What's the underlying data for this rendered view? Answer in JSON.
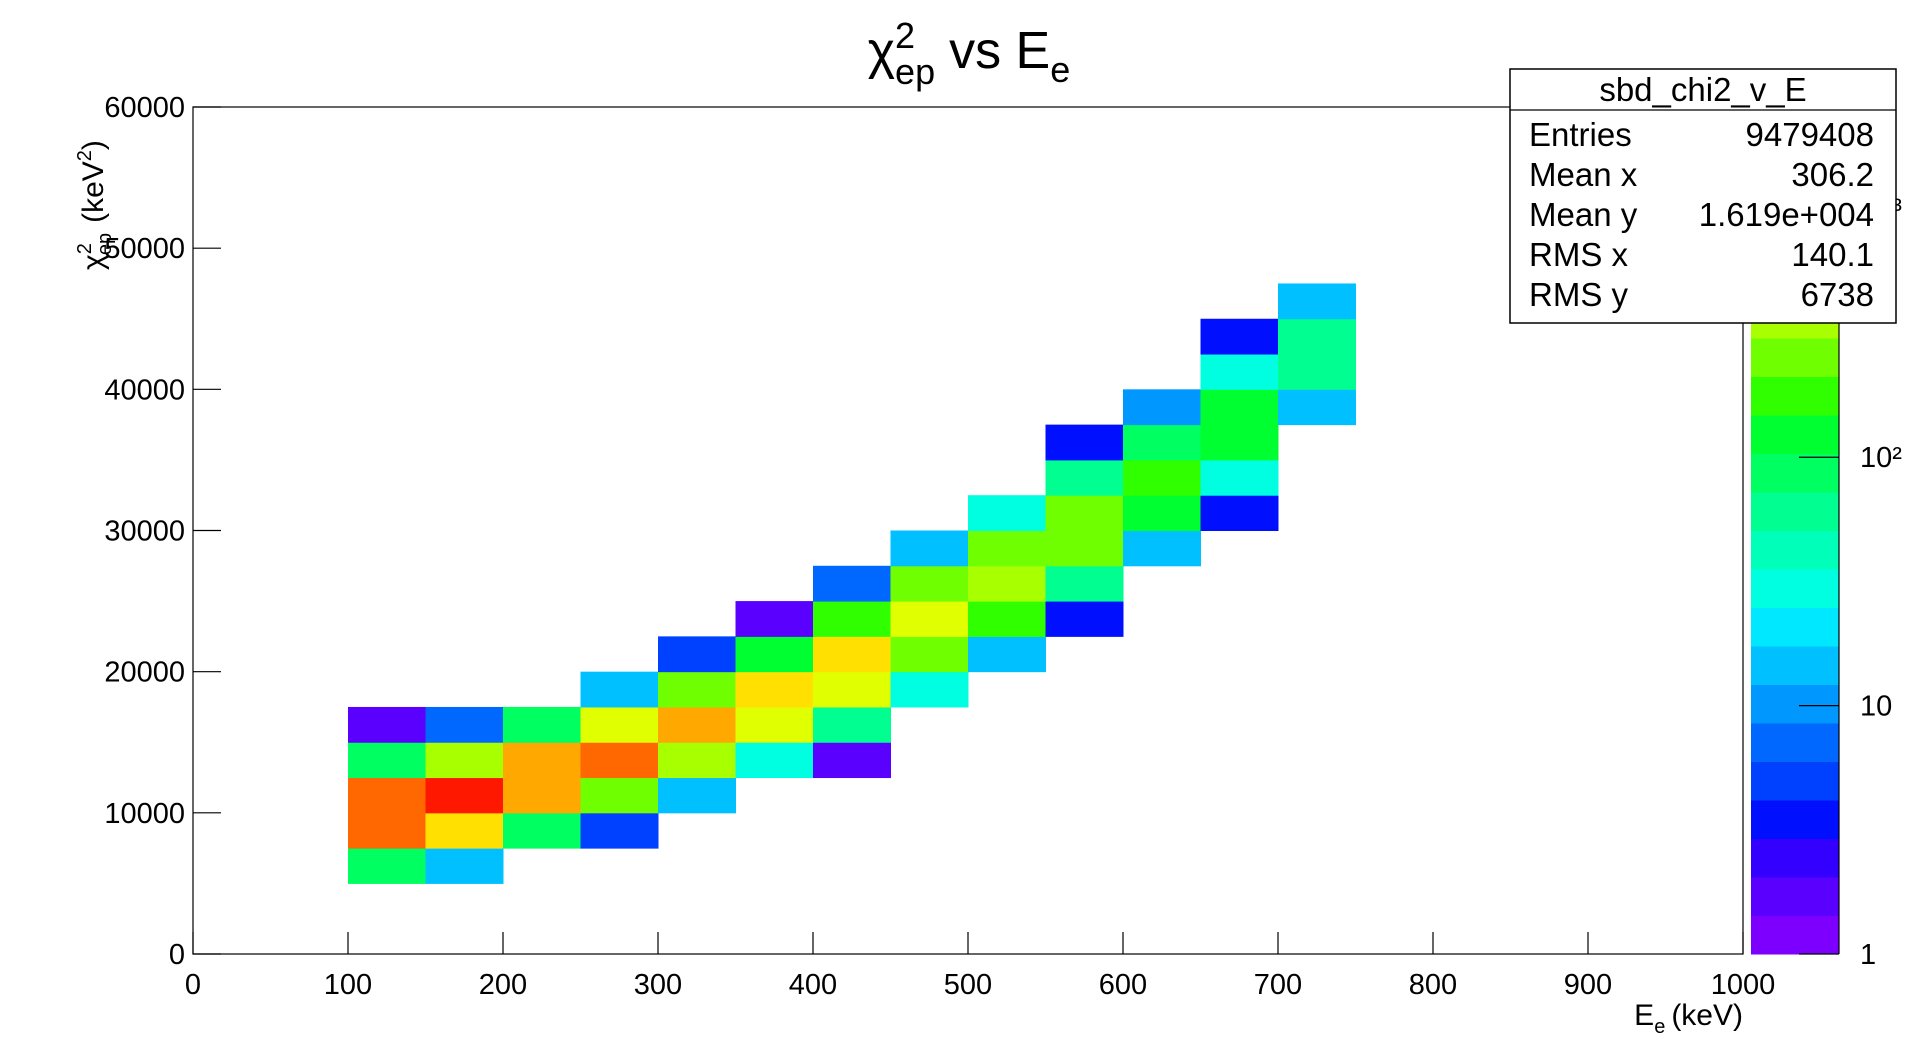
{
  "chart_data": {
    "type": "heatmap",
    "title_parts": [
      "χ",
      "2",
      "ep",
      "vs E",
      "e"
    ],
    "xlabel_parts": [
      "E",
      "e",
      "(keV)"
    ],
    "ylabel_parts": [
      "χ",
      "2",
      "ep",
      "(keV",
      "2",
      ")"
    ],
    "xlim": [
      0,
      1000
    ],
    "xticks": [
      0,
      100,
      200,
      300,
      400,
      500,
      600,
      700,
      800,
      900,
      1000
    ],
    "ylim": [
      0,
      60000
    ],
    "yticks": [
      0,
      10000,
      20000,
      30000,
      40000,
      50000,
      60000
    ],
    "zlim": [
      1,
      2570
    ],
    "zlog": true,
    "zticks": [
      1,
      10,
      {
        "value": 100,
        "label": "10²"
      },
      {
        "value": 1000,
        "label": "10³"
      }
    ],
    "palette": [
      "#7d00ff",
      "#5a00ff",
      "#3300ff",
      "#0010ff",
      "#0040ff",
      "#0068ff",
      "#0098ff",
      "#00c0ff",
      "#00e8ff",
      "#00ffe0",
      "#00ffb8",
      "#00ff90",
      "#00ff60",
      "#00ff30",
      "#30ff00",
      "#70ff00",
      "#a8ff00",
      "#e0ff00",
      "#ffe000",
      "#ffa800",
      "#ff6800",
      "#ff1800"
    ],
    "x_bins": [
      100,
      150,
      200,
      250,
      300,
      350,
      400,
      450,
      500,
      550,
      600,
      650,
      700,
      750
    ],
    "y_bins": [
      5000,
      7500,
      10000,
      12500,
      15000,
      17500,
      20000,
      22500,
      25000,
      27500,
      30000,
      32500,
      35000,
      37500,
      40000,
      42500,
      45000,
      47500,
      50000
    ],
    "z": [
      [
        102,
        16,
        null,
        null,
        null,
        null,
        null,
        null,
        null,
        null,
        null,
        null,
        null
      ],
      [
        1440,
        630,
        90,
        5,
        null,
        null,
        null,
        null,
        null,
        null,
        null,
        null,
        null
      ],
      [
        1440,
        1800,
        1180,
        290,
        13,
        null,
        null,
        null,
        null,
        null,
        null,
        null,
        null
      ],
      [
        102,
        380,
        1180,
        1300,
        410,
        28,
        2,
        null,
        null,
        null,
        null,
        null,
        null
      ],
      [
        2,
        6,
        90,
        470,
        1100,
        450,
        59,
        null,
        null,
        null,
        null,
        null,
        null
      ],
      [
        null,
        null,
        null,
        14,
        250,
        700,
        440,
        30,
        null,
        null,
        null,
        null,
        null
      ],
      [
        null,
        null,
        null,
        null,
        5,
        115,
        620,
        295,
        14,
        null,
        null,
        null,
        null
      ],
      [
        null,
        null,
        null,
        null,
        null,
        2,
        155,
        550,
        160,
        3,
        null,
        null,
        null
      ],
      [
        null,
        null,
        null,
        null,
        null,
        null,
        8,
        213,
        400,
        58,
        null,
        null,
        null
      ],
      [
        null,
        null,
        null,
        null,
        null,
        null,
        null,
        16,
        220,
        250,
        17,
        null,
        null
      ],
      [
        null,
        null,
        null,
        null,
        null,
        null,
        null,
        null,
        25,
        250,
        107,
        3,
        null
      ],
      [
        null,
        null,
        null,
        null,
        null,
        null,
        null,
        null,
        null,
        58,
        180,
        30,
        null
      ],
      [
        null,
        null,
        null,
        null,
        null,
        null,
        null,
        null,
        null,
        3,
        83,
        105,
        null
      ],
      [
        null,
        null,
        null,
        null,
        null,
        null,
        null,
        null,
        null,
        null,
        10,
        105,
        13
      ],
      [
        null,
        null,
        null,
        null,
        null,
        null,
        null,
        null,
        null,
        null,
        null,
        30,
        60
      ],
      [
        null,
        null,
        null,
        null,
        null,
        null,
        null,
        null,
        null,
        null,
        null,
        3,
        60
      ],
      [
        null,
        null,
        null,
        null,
        null,
        null,
        null,
        null,
        null,
        null,
        null,
        null,
        13
      ],
      [
        null,
        null,
        null,
        null,
        null,
        null,
        null,
        null,
        null,
        null,
        null,
        null,
        null
      ]
    ],
    "stats": {
      "name": "sbd_chi2_v_E",
      "rows": [
        [
          "Entries",
          "9479408"
        ],
        [
          "Mean x",
          "306.2"
        ],
        [
          "Mean y",
          "1.619e+004"
        ],
        [
          "RMS x",
          "140.1"
        ],
        [
          "RMS y",
          "6738"
        ]
      ]
    }
  }
}
